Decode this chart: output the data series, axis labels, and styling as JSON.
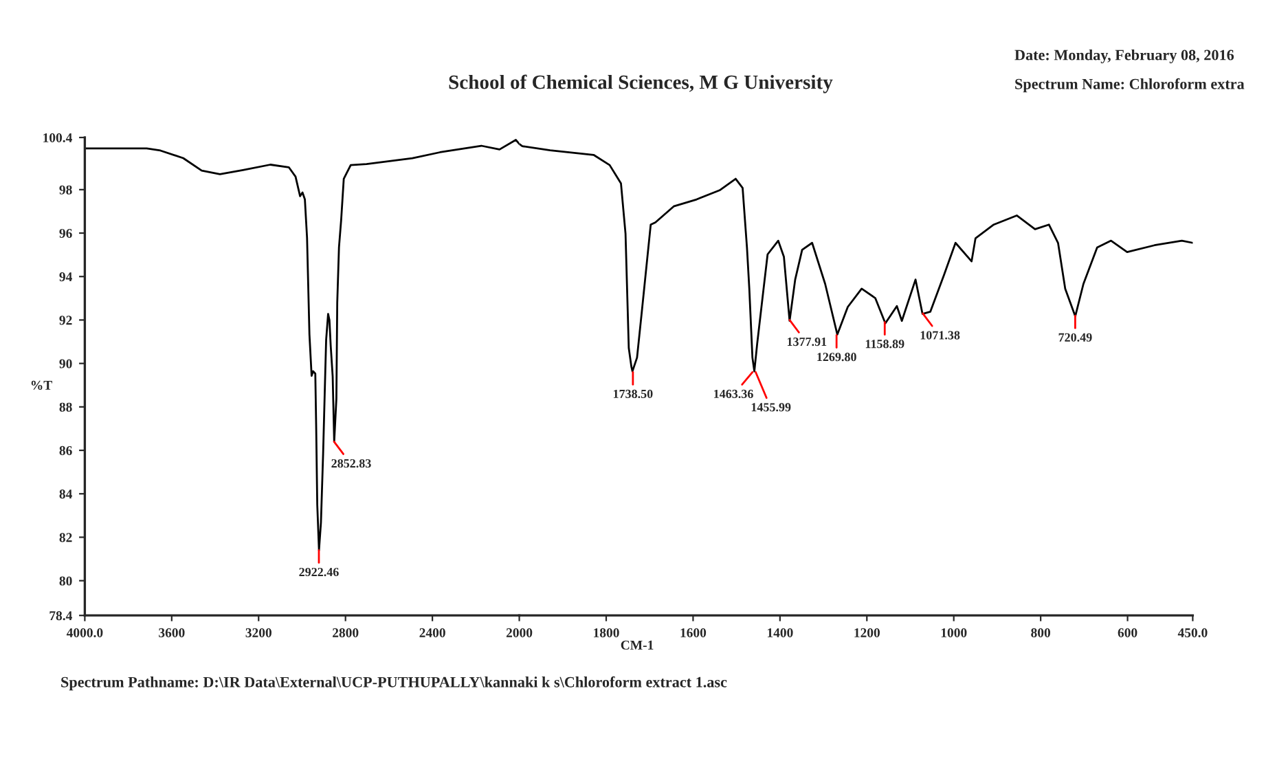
{
  "chart_data": [
    {
      "type": "line",
      "ylabel": "%T",
      "x": [
        4000,
        3715,
        3652,
        3547,
        3462,
        3378,
        3272,
        3146,
        3061,
        3030,
        3009,
        2998,
        2987,
        2977,
        2966,
        2956,
        2949,
        2939,
        2935,
        2930,
        2922,
        2913,
        2903,
        2893,
        2889,
        2880,
        2874,
        2868,
        2859,
        2852,
        2842,
        2838,
        2830,
        2820,
        2808,
        2776,
        2703,
        2492,
        2365,
        2175,
        2091,
        2016,
        2000
      ],
      "series": [
        {
          "color": "#000000",
          "values": [
            99.9,
            99.9,
            99.8,
            99.45,
            98.88,
            98.71,
            98.9,
            99.15,
            99.03,
            98.6,
            97.7,
            97.87,
            97.55,
            95.78,
            91.33,
            89.43,
            89.64,
            89.53,
            87.1,
            83.5,
            81.4,
            82.68,
            85.85,
            89.64,
            91.1,
            92.28,
            92.0,
            90.8,
            89.4,
            86.4,
            88.37,
            92.8,
            95.34,
            96.6,
            98.5,
            99.13,
            99.18,
            99.45,
            99.72,
            100.02,
            99.85,
            100.29,
            100.1
          ]
        }
      ],
      "xlim": [
        4000,
        2000
      ],
      "xticks": [
        {
          "value": 4000,
          "label": "4000.0"
        },
        3600,
        3200,
        2800,
        2400
      ],
      "ylim": [
        78.4,
        100.4
      ],
      "yticks": [
        78.4,
        80,
        82,
        84,
        86,
        88,
        90,
        92,
        94,
        96,
        98,
        100.4
      ],
      "grid": false,
      "legend": false,
      "annotations": [
        {
          "text": "2922.46",
          "x": 2922.46,
          "y": 81.4
        },
        {
          "text": "2852.83",
          "x": 2852.83,
          "y": 86.4
        },
        "Date: Monday, February 08, 2016",
        "Spectrum Name: Chloroform extra",
        "Spectrum Pathname: D:\\IR Data\\External\\UCP-PUTHUPALLY\\kannaki k s\\Chloroform extract 1.asc"
      ]
    },
    {
      "type": "line",
      "title": "School of Chemical Sciences, M G University",
      "xlabel": "CM-1",
      "x": [
        2000,
        1993,
        1929,
        1829,
        1792,
        1766,
        1755.5,
        1748,
        1742,
        1739.6,
        1729,
        1718,
        1697.5,
        1686.7,
        1644.6,
        1591.8,
        1539,
        1502,
        1486,
        1476,
        1470.6,
        1463.4,
        1459,
        1452.5,
        1439,
        1428.5,
        1404,
        1391,
        1377.9,
        1365,
        1349,
        1326,
        1296,
        1268,
        1244,
        1212,
        1180.7,
        1157.5,
        1131,
        1119.5,
        1088,
        1072,
        1054,
        1022.5,
        996,
        959,
        950,
        908,
        855,
        813,
        781,
        760,
        743.5,
        720.4,
        701.6,
        670,
        638,
        601,
        538,
        475,
        450
      ],
      "series": [
        {
          "color": "#000000",
          "values": [
            100.1,
            100.0,
            99.81,
            99.6,
            99.13,
            98.29,
            95.97,
            90.71,
            89.85,
            89.64,
            90.27,
            92.38,
            96.39,
            96.49,
            97.23,
            97.55,
            97.97,
            98.5,
            98.08,
            95.34,
            93.44,
            90.27,
            89.64,
            90.9,
            93.23,
            95.02,
            95.65,
            94.91,
            91.96,
            93.86,
            95.23,
            95.55,
            93.66,
            91.33,
            92.6,
            93.44,
            93.01,
            91.85,
            92.64,
            91.96,
            93.86,
            92.28,
            92.38,
            94.07,
            95.55,
            94.7,
            95.76,
            96.39,
            96.81,
            96.18,
            96.39,
            95.55,
            93.44,
            92.17,
            93.66,
            95.34,
            95.65,
            95.13,
            95.44,
            95.65,
            95.55
          ]
        }
      ],
      "xlim": [
        2000,
        450
      ],
      "xticks": [
        2000,
        1800,
        1600,
        1400,
        1200,
        1000,
        800,
        600,
        {
          "value": 450,
          "label": "450.0"
        }
      ],
      "ylim": [
        78.4,
        100.4
      ],
      "yticks": [
        78.4,
        80,
        82,
        84,
        86,
        88,
        90,
        92,
        94,
        96,
        98,
        100.4
      ],
      "tick_labels": "x",
      "grid": false,
      "legend": false,
      "annotations": [
        {
          "text": "1738.50",
          "x": 1738.5,
          "y": 89.6
        },
        {
          "text": "1463.36",
          "x": 1463.36,
          "y": 89.6
        },
        {
          "text": "1455.99",
          "x": 1455.99,
          "y": 89.6
        },
        {
          "text": "1377.91",
          "x": 1377.91,
          "y": 92.0
        },
        {
          "text": "1269.80",
          "x": 1269.8,
          "y": 91.3
        },
        {
          "text": "1158.89",
          "x": 1158.89,
          "y": 91.9
        },
        {
          "text": "1071.38",
          "x": 1071.38,
          "y": 92.3
        },
        {
          "text": "720.49",
          "x": 720.49,
          "y": 92.2
        }
      ]
    }
  ]
}
